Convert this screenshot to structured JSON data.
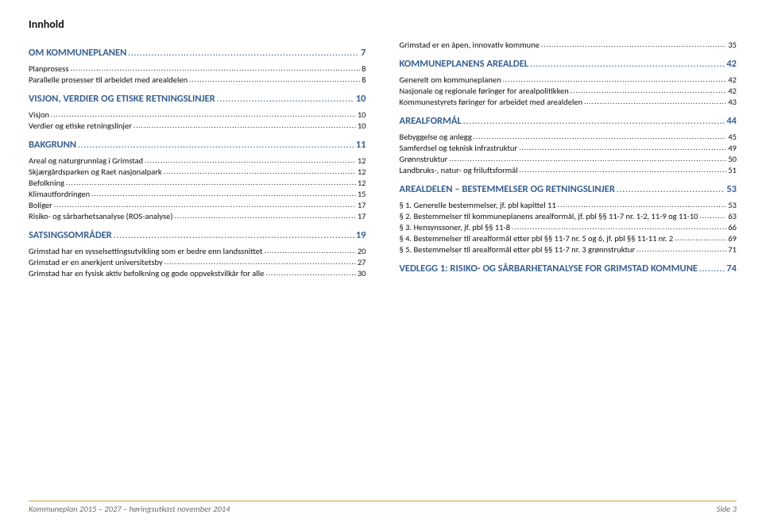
{
  "title": "Innhold",
  "footer": {
    "left": "Kommuneplan 2015 – 2027 – høringsutkast november 2014",
    "right": "Side 3"
  },
  "left": {
    "sections": [
      {
        "type": "sec",
        "label": "OM KOMMUNEPLANEN",
        "page": "7",
        "items": [
          {
            "label": "Planprosess",
            "page": "8"
          },
          {
            "label": "Parallelle prosesser til arbeidet med arealdelen",
            "page": "8"
          }
        ]
      },
      {
        "type": "sec",
        "label": "VISJON, VERDIER OG ETISKE RETNINGSLINJER",
        "page": "10",
        "items": [
          {
            "label": "Visjon",
            "page": "10"
          },
          {
            "label": "Verdier og etiske retningslinjer",
            "page": "10"
          }
        ]
      },
      {
        "type": "sec",
        "label": "BAKGRUNN",
        "page": "11",
        "items": [
          {
            "label": "Areal og naturgrunnlag i Grimstad",
            "page": "12"
          },
          {
            "label": "Skjærgårdsparken og Raet nasjonalpark",
            "page": "12"
          },
          {
            "label": "Befolkning",
            "page": "12"
          },
          {
            "label": "Klimautfordringen",
            "page": "15"
          },
          {
            "label": "Boliger",
            "page": "17"
          },
          {
            "label": "Risiko- og sårbarhetsanalyse (ROS-analyse)",
            "page": "17"
          }
        ]
      },
      {
        "type": "sec",
        "label": "SATSINGSOMRÅDER",
        "page": "19",
        "items": [
          {
            "label": "Grimstad har en sysselsettingsutvikling som er bedre enn landssnittet",
            "page": "20"
          },
          {
            "label": "Grimstad er en anerkjent universitetsby",
            "page": "27"
          },
          {
            "label": "Grimstad har en fysisk aktiv befolkning og gode oppvekstvilkår for alle",
            "page": "30"
          }
        ]
      }
    ]
  },
  "right": {
    "preitems": [
      {
        "label": "Grimstad er en åpen, innovativ kommune",
        "page": "35"
      }
    ],
    "sections": [
      {
        "type": "sec",
        "label": "KOMMUNEPLANENS AREALDEL",
        "page": "42",
        "items": [
          {
            "label": "Generelt om kommuneplanen",
            "page": "42"
          },
          {
            "label": "Nasjonale og regionale føringer for arealpolitikken",
            "page": "42"
          },
          {
            "label": "Kommunestyrets føringer for arbeidet med arealdelen",
            "page": "43"
          }
        ]
      },
      {
        "type": "sec",
        "label": "AREALFORMÅL",
        "page": "44",
        "items": [
          {
            "label": "Bebyggelse og anlegg",
            "page": "45"
          },
          {
            "label": "Samferdsel og teknisk infrastruktur",
            "page": "49"
          },
          {
            "label": "Grønnstruktur",
            "page": "50"
          },
          {
            "label": "Landbruks-, natur- og friluftsformål",
            "page": "51"
          }
        ]
      },
      {
        "type": "sec",
        "label": "AREALDELEN – BESTEMMELSER OG RETNINGSLINJER",
        "page": "53",
        "items": [
          {
            "label": "§ 1. Generelle bestemmelser, jf. pbl kapittel 11",
            "page": "53"
          },
          {
            "label": "§ 2. Bestemmelser til kommuneplanens arealformål, jf. pbl §§ 11-7 nr. 1-2, 11-9 og 11-10",
            "page": "63"
          },
          {
            "label": "§ 3. Hensynssoner, jf. pbl §§ 11-8",
            "page": "66"
          },
          {
            "label": "§ 4. Bestemmelser til arealformål etter pbl §§ 11-7 nr. 5 og 6, jf. pbl §§ 11-11 nr. 2",
            "page": "69"
          },
          {
            "label": "§ 5. Bestemmelser til arealformål etter pbl §§ 11-7 nr. 3 grønnstruktur",
            "page": "71"
          }
        ]
      },
      {
        "type": "sec",
        "label": "VEDLEGG 1: RISIKO- OG SÅRBARHETANALYSE FOR GRIMSTAD KOMMUNE",
        "page": "74",
        "items": []
      }
    ]
  }
}
